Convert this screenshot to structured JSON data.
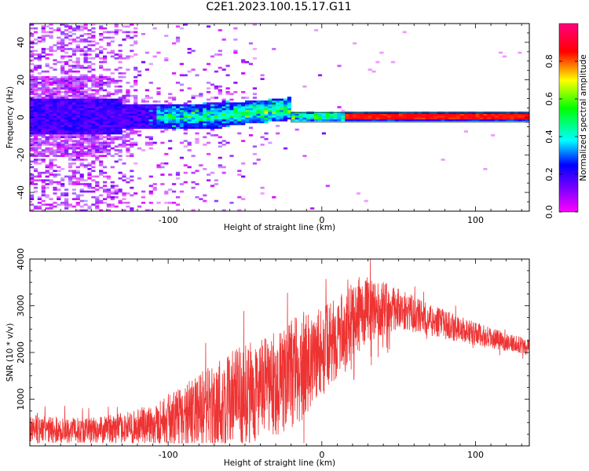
{
  "title": "C2E1.2023.100.15.17.G11",
  "chart_data": [
    {
      "type": "heatmap",
      "xlabel": "Height of straight line (km)",
      "ylabel": "Frequency (Hz)",
      "xlim": [
        -190,
        135
      ],
      "ylim": [
        -50,
        50
      ],
      "xticks": [
        -100,
        0,
        100
      ],
      "yticks": [
        -40,
        -20,
        0,
        20,
        40
      ],
      "colorbar": {
        "label": "Normalized spectral amplitude",
        "range": [
          0,
          1
        ],
        "ticks": [
          "0.0",
          "0.2",
          "0.4",
          "0.6",
          "0.8"
        ],
        "colors": [
          "#ff00ff",
          "#8000ff",
          "#0000ff",
          "#00ffff",
          "#00ff00",
          "#ffff00",
          "#ff0000",
          "#ff0080"
        ]
      },
      "dominant_line": {
        "frequency": 0,
        "x_start": -20,
        "x_end": 135,
        "amplitude": 0.85
      }
    },
    {
      "type": "line",
      "xlabel": "Height of straight line (km)",
      "ylabel": "SNR (10 * v/v)",
      "xlim": [
        -190,
        135
      ],
      "ylim": [
        0,
        4000
      ],
      "xticks": [
        -100,
        0,
        100
      ],
      "yticks": [
        1000,
        2000,
        3000,
        4000
      ],
      "color": "#ee3333",
      "envelope": {
        "x": [
          -190,
          -160,
          -130,
          -110,
          -95,
          -80,
          -65,
          -55,
          -45,
          -35,
          -25,
          -15,
          -5,
          5,
          15,
          25,
          35,
          50,
          65,
          80,
          95,
          110,
          125,
          135
        ],
        "mean": [
          350,
          330,
          380,
          470,
          580,
          720,
          900,
          1050,
          1150,
          1250,
          1400,
          1650,
          1900,
          2150,
          2500,
          2850,
          2950,
          2950,
          2750,
          2600,
          2450,
          2300,
          2200,
          2100
        ],
        "spread": [
          350,
          300,
          350,
          500,
          700,
          900,
          1200,
          1200,
          1200,
          1200,
          1300,
          1300,
          1200,
          1000,
          900,
          900,
          700,
          500,
          400,
          350,
          300,
          250,
          200,
          200
        ]
      }
    }
  ]
}
